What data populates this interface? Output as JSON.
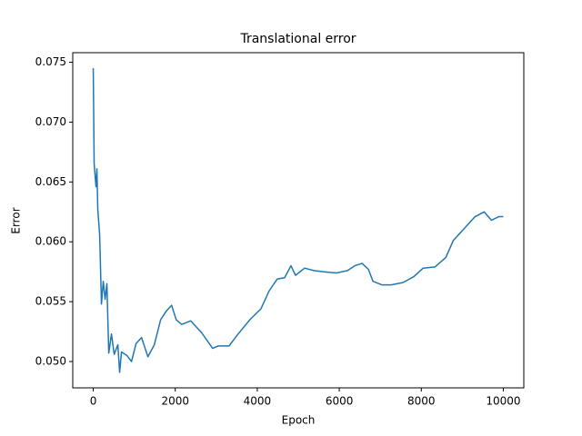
{
  "chart_data": {
    "type": "line",
    "title": "Translational error",
    "x_label": "Epoch",
    "y_label": "Error",
    "x": [
      0,
      22,
      67,
      89,
      111,
      156,
      200,
      244,
      289,
      333,
      378,
      444,
      511,
      600,
      644,
      689,
      822,
      933,
      1044,
      1178,
      1333,
      1489,
      1644,
      1778,
      1911,
      2022,
      2156,
      2378,
      2644,
      2911,
      3044,
      3311,
      3533,
      3822,
      4089,
      4289,
      4489,
      4667,
      4822,
      4933,
      5156,
      5378,
      5600,
      5933,
      6200,
      6378,
      6556,
      6711,
      6822,
      7044,
      7267,
      7556,
      7822,
      8044,
      8333,
      8600,
      8778,
      9044,
      9311,
      9533,
      9711,
      9889,
      10000
    ],
    "series": [
      {
        "name": "error",
        "color": "#1f77b4",
        "values": [
          0.0745,
          0.0665,
          0.0646,
          0.0661,
          0.0627,
          0.0606,
          0.0548,
          0.0567,
          0.0552,
          0.0565,
          0.0507,
          0.0523,
          0.0506,
          0.0514,
          0.0491,
          0.0508,
          0.0505,
          0.05,
          0.0515,
          0.052,
          0.0504,
          0.0514,
          0.0535,
          0.0542,
          0.0547,
          0.0535,
          0.0531,
          0.0534,
          0.0524,
          0.0511,
          0.0513,
          0.0513,
          0.0523,
          0.0535,
          0.0544,
          0.0559,
          0.0569,
          0.057,
          0.058,
          0.0572,
          0.0578,
          0.0576,
          0.0575,
          0.0574,
          0.0576,
          0.058,
          0.0582,
          0.0577,
          0.0567,
          0.0564,
          0.0564,
          0.0566,
          0.0571,
          0.0578,
          0.0579,
          0.0587,
          0.0601,
          0.0611,
          0.0621,
          0.0625,
          0.0618,
          0.0621,
          0.0621
        ]
      }
    ],
    "xlim": [
      -500,
      10500
    ],
    "ylim": [
      0.0478,
      0.0758
    ],
    "xticks": [
      0,
      2000,
      4000,
      6000,
      8000,
      10000
    ],
    "yticks": [
      {
        "value": 0.05,
        "label": "0.050"
      },
      0.055,
      {
        "value": 0.06,
        "label": "0.060"
      },
      0.065,
      {
        "value": 0.07,
        "label": "0.070"
      },
      0.075
    ]
  }
}
